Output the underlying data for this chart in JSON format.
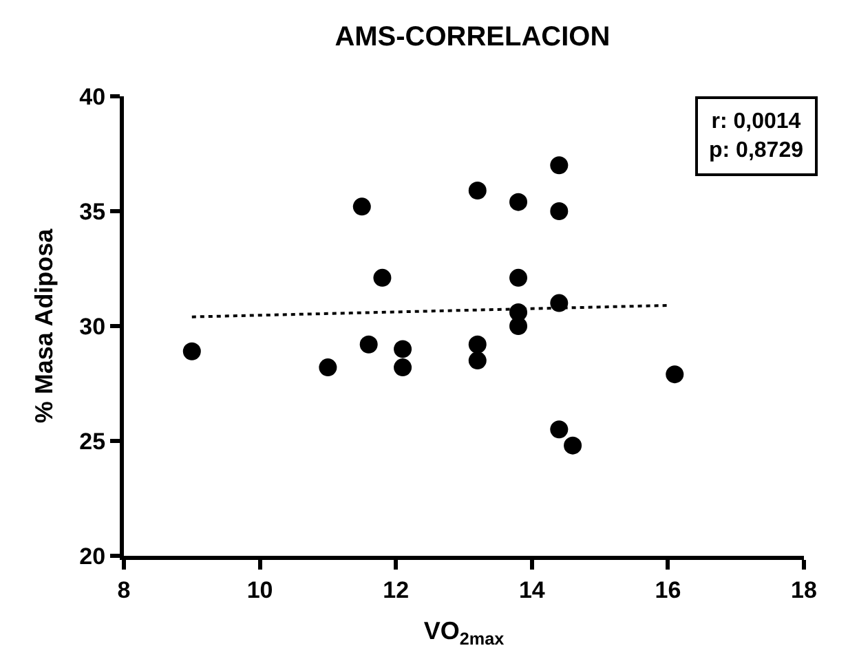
{
  "chart_data": {
    "type": "scatter",
    "title": "AMS-CORRELACION",
    "xlabel": "VO$_{2max}$",
    "ylabel": "% Masa Adiposa",
    "xlim": [
      8,
      18
    ],
    "xticks": [
      8,
      10,
      12,
      14,
      16,
      18
    ],
    "ylim": [
      20,
      40
    ],
    "yticks": [
      20,
      25,
      30,
      35,
      40
    ],
    "marker": "circle",
    "annotations": [
      "r: 0,0014\np: 0,8729"
    ],
    "series": [
      {
        "color": "#000000",
        "x": [
          9.0,
          11.0,
          11.5,
          11.6,
          11.8,
          12.1,
          12.1,
          13.2,
          13.2,
          13.2,
          13.8,
          13.8,
          13.8,
          13.8,
          14.4,
          14.4,
          14.4,
          14.4,
          14.6,
          16.1
        ],
        "values": [
          28.9,
          28.2,
          35.2,
          29.2,
          32.1,
          29.0,
          28.2,
          35.9,
          29.2,
          28.5,
          35.4,
          32.1,
          30.6,
          30.0,
          37.0,
          35.0,
          31.0,
          25.5,
          24.8,
          27.9
        ]
      },
      {
        "type": "line",
        "color": "#000000",
        "line_style": "dotted",
        "marker": "none",
        "x": [
          9.0,
          16.0
        ],
        "values": [
          30.4,
          30.9
        ]
      }
    ]
  }
}
